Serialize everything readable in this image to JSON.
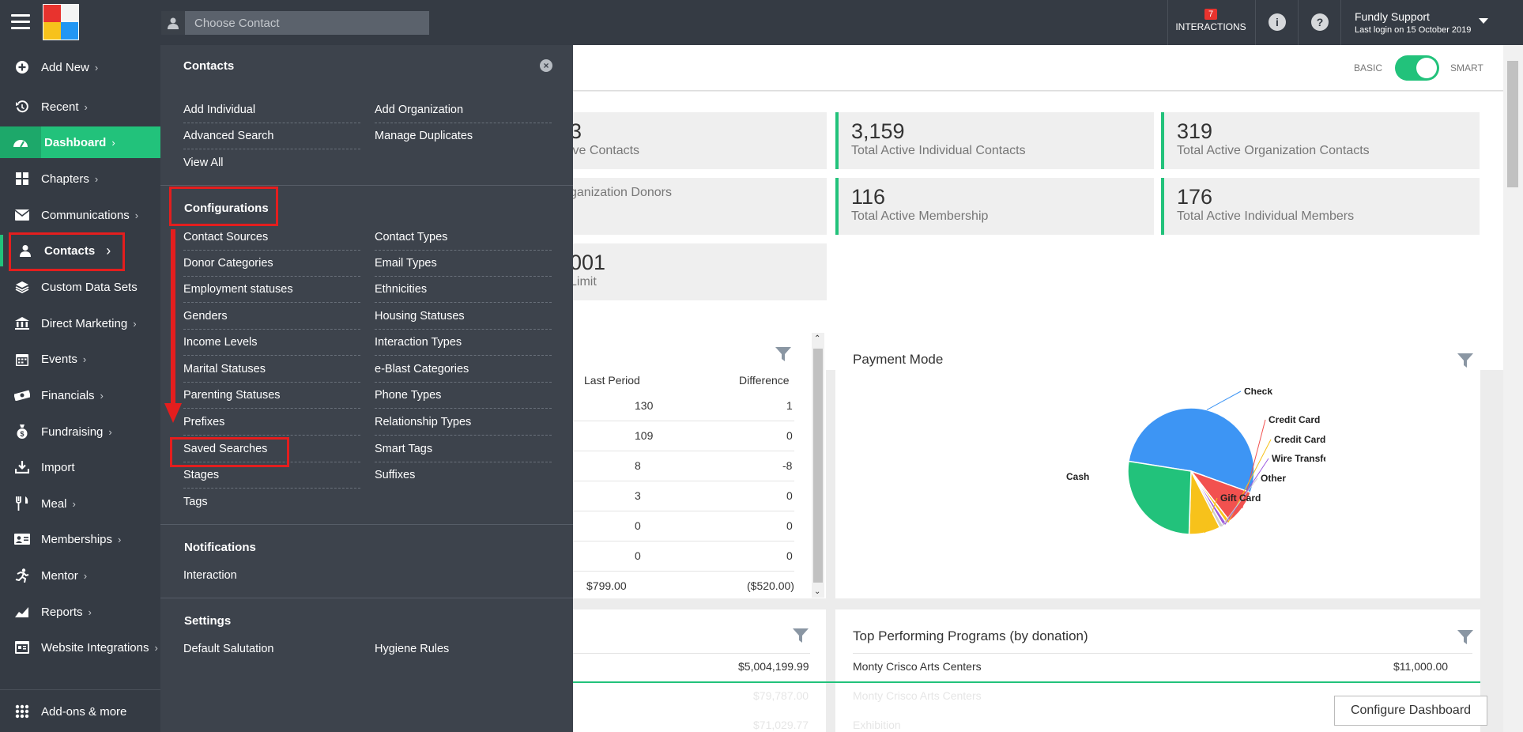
{
  "topbar": {
    "search_placeholder": "Choose Contact",
    "interactions_count": "7",
    "interactions_label": "INTERACTIONS",
    "info_icon": "info-icon",
    "help_icon": "question-icon",
    "user_name": "Fundly Support",
    "last_login": "Last login on 15 October 2019"
  },
  "sidebar": {
    "items": [
      {
        "label": "Add New",
        "icon": "plus-circle-icon"
      },
      {
        "label": "Recent",
        "icon": "history-icon"
      },
      {
        "label": "Dashboard",
        "icon": "speedometer-icon"
      },
      {
        "label": "Chapters",
        "icon": "grid-icon"
      },
      {
        "label": "Communications",
        "icon": "envelope-icon"
      },
      {
        "label": "Contacts",
        "icon": "person-icon"
      },
      {
        "label": "Custom Data Sets",
        "icon": "layers-icon"
      },
      {
        "label": "Direct Marketing",
        "icon": "bank-icon"
      },
      {
        "label": "Events",
        "icon": "calendar-icon"
      },
      {
        "label": "Financials",
        "icon": "money-icon"
      },
      {
        "label": "Fundraising",
        "icon": "moneybag-icon"
      },
      {
        "label": "Import",
        "icon": "import-icon"
      },
      {
        "label": "Meal",
        "icon": "cutlery-icon"
      },
      {
        "label": "Memberships",
        "icon": "idcard-icon"
      },
      {
        "label": "Mentor",
        "icon": "running-person-icon"
      },
      {
        "label": "Reports",
        "icon": "chart-icon"
      },
      {
        "label": "Website Integrations",
        "icon": "window-icon"
      }
    ],
    "addons_label": "Add-ons & more"
  },
  "flyout": {
    "contacts_heading": "Contacts",
    "contacts_left": [
      "Add Individual",
      "Advanced Search",
      "View All"
    ],
    "contacts_right": [
      "Add Organization",
      "Manage Duplicates"
    ],
    "config_heading": "Configurations",
    "config_left": [
      "Contact Sources",
      "Donor Categories",
      "Employment statuses",
      "Genders",
      "Income Levels",
      "Marital Statuses",
      "Parenting Statuses",
      "Prefixes",
      "Saved Searches",
      "Stages",
      "Tags"
    ],
    "config_right": [
      "Contact Types",
      "Email Types",
      "Ethnicities",
      "Housing Statuses",
      "Interaction Types",
      "e-Blast Categories",
      "Phone Types",
      "Relationship Types",
      "Smart Tags",
      "Suffixes"
    ],
    "notifications_heading": "Notifications",
    "notifications_items": [
      "Interaction"
    ],
    "settings_heading": "Settings",
    "settings_left": [
      "Default Salutation"
    ],
    "settings_right": [
      "Hygiene Rules"
    ]
  },
  "main": {
    "toggle_basic": "BASIC",
    "toggle_smart": "SMART",
    "stats": [
      {
        "num": "3",
        "label": "ive Contacts"
      },
      {
        "num": "3,159",
        "label": "Total Active Individual Contacts"
      },
      {
        "num": "319",
        "label": "Total Active Organization Contacts"
      },
      {
        "num": "",
        "label": "ganization Donors"
      },
      {
        "num": "116",
        "label": "Total Active Membership"
      },
      {
        "num": "176",
        "label": "Total Active Individual Members"
      },
      {
        "num": "001",
        "label": "Limit"
      }
    ],
    "table": {
      "col_last": "Last Period",
      "col_diff": "Difference",
      "rows": [
        {
          "last": "130",
          "diff": "1"
        },
        {
          "last": "109",
          "diff": "0"
        },
        {
          "last": "8",
          "diff": "-8"
        },
        {
          "last": "3",
          "diff": "0"
        },
        {
          "last": "0",
          "diff": "0"
        },
        {
          "last": "0",
          "diff": "0"
        },
        {
          "last": "$799.00",
          "diff": "($520.00)"
        }
      ]
    },
    "payment_mode_title": "Payment Mode",
    "bottom_left_rows": [
      {
        "value": "$5,004,199.99"
      },
      {
        "value": "$79,787.00"
      },
      {
        "value": "$71,029.77"
      }
    ],
    "top_programs_title": "Top Performing Programs (by donation)",
    "top_programs_rows": [
      {
        "name": "Monty Crisco Arts Centers",
        "value": "$11,000.00"
      },
      {
        "name": "Monty Crisco Arts Centers",
        "value": "$1..."
      },
      {
        "name": "Exhibition",
        "value": ""
      }
    ],
    "configure_button": "Configure Dashboard"
  },
  "chart_data": {
    "type": "pie",
    "title": "Payment Mode",
    "categories": [
      "Check",
      "Credit Card",
      "Credit Card Offline",
      "Wire Transfer",
      "Other",
      "Gift Card",
      "Cash"
    ],
    "values": [
      53,
      9,
      1,
      1,
      1,
      8,
      27
    ],
    "colors": [
      "#3d95f4",
      "#f2514f",
      "#f7c21b",
      "#9c5ae0",
      "#cfcfcf",
      "#f7c21b",
      "#22c27b"
    ]
  }
}
